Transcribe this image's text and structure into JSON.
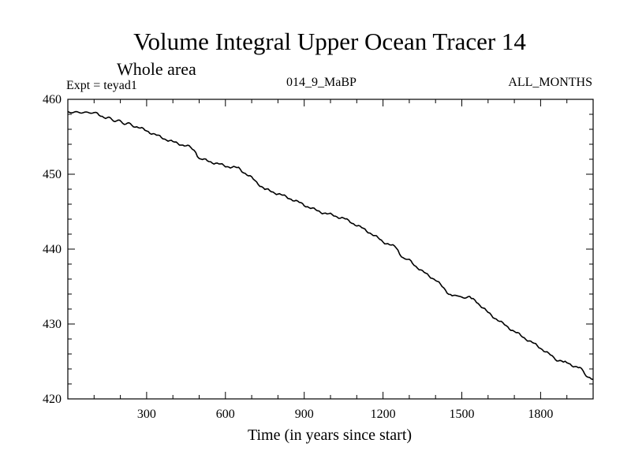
{
  "header": {
    "title": "Volume Integral Upper Ocean Tracer 14",
    "subtitle": "Whole area",
    "experiment": "Expt = teyad1",
    "run_id": "014_9_MaBP",
    "months": "ALL_MONTHS"
  },
  "chart_data": {
    "type": "line",
    "title": "Volume Integral Upper Ocean Tracer 14",
    "subtitle": "Whole area",
    "xlabel": "Time (in years since start)",
    "ylabel": "",
    "xlim": [
      0,
      2000
    ],
    "ylim": [
      420,
      460
    ],
    "xticks": [
      300,
      600,
      900,
      1200,
      1500,
      1800
    ],
    "xtick_labels": [
      "300",
      "600",
      "900",
      "1200",
      "1500",
      "1800"
    ],
    "yticks": [
      420,
      430,
      440,
      450,
      460
    ],
    "ytick_labels": [
      "420",
      "430",
      "440",
      "450",
      "460"
    ],
    "grid": false,
    "series": [
      {
        "name": "Volume Integral Upper Ocean Tracer 14",
        "color": "#000000",
        "x": [
          0,
          100,
          150,
          250,
          300,
          350,
          400,
          450,
          480,
          500,
          550,
          600,
          650,
          700,
          750,
          800,
          850,
          900,
          950,
          1000,
          1050,
          1100,
          1150,
          1200,
          1250,
          1270,
          1300,
          1350,
          1400,
          1450,
          1470,
          1500,
          1530,
          1550,
          1600,
          1650,
          1700,
          1750,
          1800,
          1850,
          1880,
          1900,
          1950,
          1980,
          2000
        ],
        "y": [
          458.3,
          458.2,
          457.5,
          456.5,
          455.8,
          455.0,
          454.3,
          453.8,
          453.4,
          452.1,
          451.6,
          451.1,
          450.8,
          449.5,
          448.0,
          447.4,
          446.7,
          445.9,
          445.1,
          444.6,
          444.1,
          443.2,
          442.2,
          441.0,
          440.2,
          439.0,
          438.5,
          437.0,
          435.9,
          434.1,
          433.8,
          433.6,
          433.5,
          433.2,
          431.5,
          430.2,
          429.0,
          427.9,
          426.8,
          425.5,
          424.9,
          424.8,
          424.1,
          423.0,
          422.6
        ]
      }
    ]
  }
}
